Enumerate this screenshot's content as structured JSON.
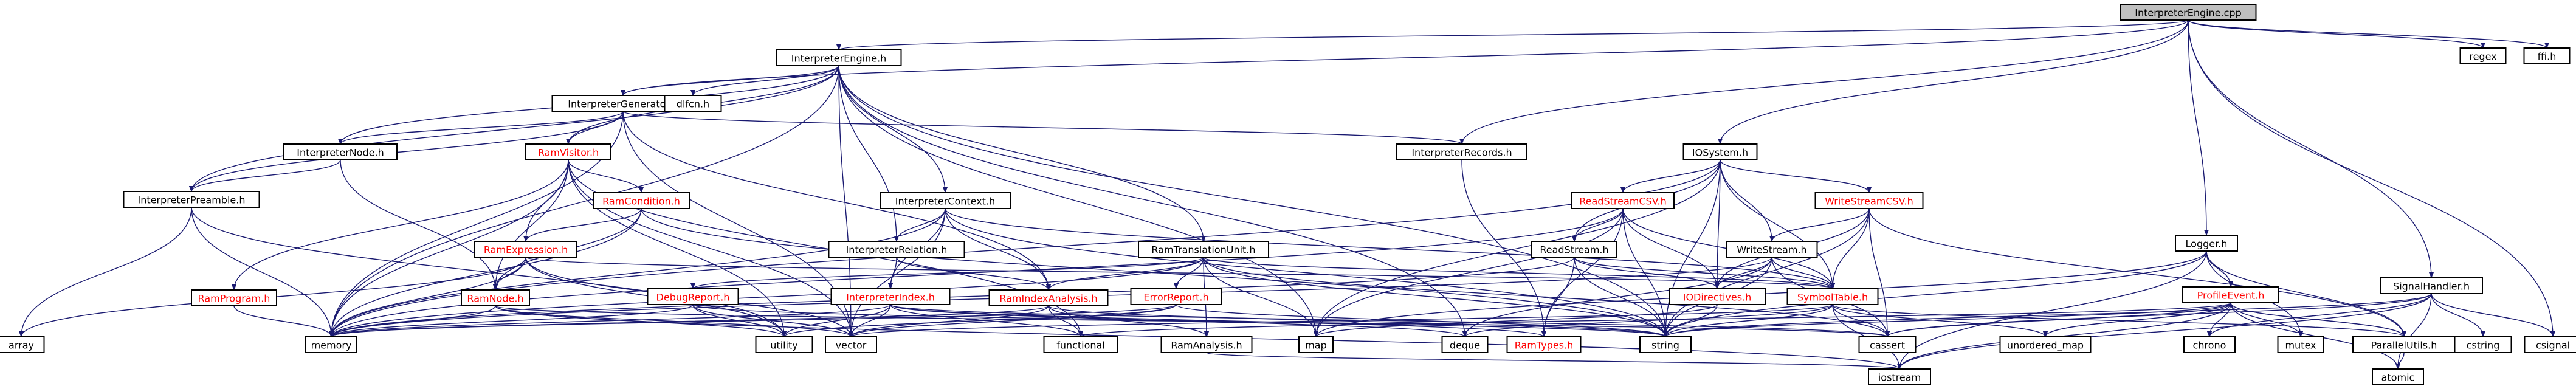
{
  "colors": {
    "edge": "#191970",
    "root_fill": "#bfbfbf",
    "node_fill": "#ffffff",
    "border": "#000000",
    "unresolved_text": "#ff0000"
  },
  "nodes": [
    {
      "id": "n0",
      "label": "InterpreterEngine.cpp",
      "root": true
    },
    {
      "id": "n1",
      "label": "InterpreterEngine.h"
    },
    {
      "id": "n2",
      "label": "regex"
    },
    {
      "id": "n3",
      "label": "ffi.h"
    },
    {
      "id": "n4",
      "label": "InterpreterGenerator.h"
    },
    {
      "id": "n5",
      "label": "dlfcn.h"
    },
    {
      "id": "n6",
      "label": "InterpreterRecords.h"
    },
    {
      "id": "n7",
      "label": "IOSystem.h"
    },
    {
      "id": "n8",
      "label": "Logger.h"
    },
    {
      "id": "n9",
      "label": "SignalHandler.h"
    },
    {
      "id": "n10",
      "label": "csignal"
    },
    {
      "id": "n11",
      "label": "InterpreterNode.h"
    },
    {
      "id": "n12",
      "label": "RamVisitor.h",
      "red": true
    },
    {
      "id": "n13",
      "label": "InterpreterPreamble.h"
    },
    {
      "id": "n14",
      "label": "RamCondition.h",
      "red": true
    },
    {
      "id": "n15",
      "label": "InterpreterContext.h"
    },
    {
      "id": "n16",
      "label": "ReadStreamCSV.h",
      "red": true
    },
    {
      "id": "n17",
      "label": "WriteStreamCSV.h",
      "red": true
    },
    {
      "id": "n18",
      "label": "RamExpression.h",
      "red": true
    },
    {
      "id": "n19",
      "label": "InterpreterRelation.h"
    },
    {
      "id": "n20",
      "label": "RamTranslationUnit.h"
    },
    {
      "id": "n21",
      "label": "ReadStream.h"
    },
    {
      "id": "n22",
      "label": "WriteStream.h"
    },
    {
      "id": "n23",
      "label": "ProfileEvent.h",
      "red": true
    },
    {
      "id": "n24",
      "label": "RamProgram.h",
      "red": true
    },
    {
      "id": "n25",
      "label": "RamNode.h",
      "red": true
    },
    {
      "id": "n26",
      "label": "DebugReport.h",
      "red": true
    },
    {
      "id": "n27",
      "label": "InterpreterIndex.h",
      "red": true
    },
    {
      "id": "n28",
      "label": "RamIndexAnalysis.h",
      "red": true
    },
    {
      "id": "n29",
      "label": "ErrorReport.h",
      "red": true
    },
    {
      "id": "n30",
      "label": "IODirectives.h",
      "red": true
    },
    {
      "id": "n31",
      "label": "SymbolTable.h",
      "red": true
    },
    {
      "id": "n32",
      "label": "array"
    },
    {
      "id": "n33",
      "label": "memory"
    },
    {
      "id": "n34",
      "label": "utility"
    },
    {
      "id": "n35",
      "label": "vector"
    },
    {
      "id": "n36",
      "label": "functional"
    },
    {
      "id": "n37",
      "label": "map"
    },
    {
      "id": "n38",
      "label": "RamAnalysis.h"
    },
    {
      "id": "n39",
      "label": "deque"
    },
    {
      "id": "n40",
      "label": "RamTypes.h",
      "red": true
    },
    {
      "id": "n41",
      "label": "string"
    },
    {
      "id": "n42",
      "label": "cassert"
    },
    {
      "id": "n43",
      "label": "unordered_map"
    },
    {
      "id": "n44",
      "label": "chrono"
    },
    {
      "id": "n45",
      "label": "mutex"
    },
    {
      "id": "n46",
      "label": "ParallelUtils.h"
    },
    {
      "id": "n47",
      "label": "cstring"
    },
    {
      "id": "n48",
      "label": "iostream"
    },
    {
      "id": "n49",
      "label": "atomic"
    }
  ],
  "edges": [
    [
      "n0",
      "n1"
    ],
    [
      "n0",
      "n2"
    ],
    [
      "n0",
      "n3"
    ],
    [
      "n0",
      "n4"
    ],
    [
      "n0",
      "n6"
    ],
    [
      "n0",
      "n7"
    ],
    [
      "n0",
      "n8"
    ],
    [
      "n0",
      "n9"
    ],
    [
      "n0",
      "n10"
    ],
    [
      "n1",
      "n4"
    ],
    [
      "n1",
      "n5"
    ],
    [
      "n1",
      "n11"
    ],
    [
      "n1",
      "n12"
    ],
    [
      "n1",
      "n13"
    ],
    [
      "n1",
      "n15"
    ],
    [
      "n1",
      "n19"
    ],
    [
      "n1",
      "n20"
    ],
    [
      "n1",
      "n33"
    ],
    [
      "n1",
      "n37"
    ],
    [
      "n1",
      "n39"
    ],
    [
      "n1",
      "n35"
    ],
    [
      "n1",
      "n41"
    ],
    [
      "n4",
      "n11"
    ],
    [
      "n4",
      "n12"
    ],
    [
      "n4",
      "n13"
    ],
    [
      "n4",
      "n6"
    ],
    [
      "n4",
      "n28"
    ],
    [
      "n4",
      "n33"
    ],
    [
      "n4",
      "n35"
    ],
    [
      "n11",
      "n13"
    ],
    [
      "n11",
      "n25"
    ],
    [
      "n12",
      "n14"
    ],
    [
      "n12",
      "n18"
    ],
    [
      "n12",
      "n24"
    ],
    [
      "n12",
      "n25"
    ],
    [
      "n12",
      "n33"
    ],
    [
      "n12",
      "n34"
    ],
    [
      "n12",
      "n35"
    ],
    [
      "n12",
      "n36"
    ],
    [
      "n13",
      "n32"
    ],
    [
      "n13",
      "n33"
    ],
    [
      "n13",
      "n34"
    ],
    [
      "n14",
      "n18"
    ],
    [
      "n14",
      "n25"
    ],
    [
      "n14",
      "n33"
    ],
    [
      "n14",
      "n41"
    ],
    [
      "n15",
      "n19"
    ],
    [
      "n15",
      "n27"
    ],
    [
      "n15",
      "n28"
    ],
    [
      "n15",
      "n31"
    ],
    [
      "n15",
      "n33"
    ],
    [
      "n15",
      "n35"
    ],
    [
      "n15",
      "n41"
    ],
    [
      "n6",
      "n40"
    ],
    [
      "n7",
      "n16"
    ],
    [
      "n7",
      "n17"
    ],
    [
      "n7",
      "n21"
    ],
    [
      "n7",
      "n22"
    ],
    [
      "n7",
      "n30"
    ],
    [
      "n7",
      "n31"
    ],
    [
      "n7",
      "n33"
    ],
    [
      "n7",
      "n37"
    ],
    [
      "n7",
      "n41"
    ],
    [
      "n16",
      "n21"
    ],
    [
      "n16",
      "n30"
    ],
    [
      "n16",
      "n31"
    ],
    [
      "n16",
      "n40"
    ],
    [
      "n16",
      "n37"
    ],
    [
      "n16",
      "n41"
    ],
    [
      "n16",
      "n33"
    ],
    [
      "n17",
      "n22"
    ],
    [
      "n17",
      "n30"
    ],
    [
      "n17",
      "n31"
    ],
    [
      "n17",
      "n41"
    ],
    [
      "n17",
      "n42"
    ],
    [
      "n17",
      "n46"
    ],
    [
      "n18",
      "n25"
    ],
    [
      "n18",
      "n31"
    ],
    [
      "n18",
      "n32"
    ],
    [
      "n18",
      "n33"
    ],
    [
      "n18",
      "n35"
    ],
    [
      "n18",
      "n34"
    ],
    [
      "n19",
      "n27"
    ],
    [
      "n19",
      "n28"
    ],
    [
      "n20",
      "n26"
    ],
    [
      "n20",
      "n29"
    ],
    [
      "n20",
      "n28"
    ],
    [
      "n20",
      "n38"
    ],
    [
      "n20",
      "n31"
    ],
    [
      "n20",
      "n37"
    ],
    [
      "n20",
      "n33"
    ],
    [
      "n20",
      "n41"
    ],
    [
      "n20",
      "n42"
    ],
    [
      "n21",
      "n30"
    ],
    [
      "n21",
      "n31"
    ],
    [
      "n21",
      "n40"
    ],
    [
      "n21",
      "n41"
    ],
    [
      "n21",
      "n33"
    ],
    [
      "n22",
      "n30"
    ],
    [
      "n22",
      "n31"
    ],
    [
      "n22",
      "n41"
    ],
    [
      "n22",
      "n33"
    ],
    [
      "n22",
      "n42"
    ],
    [
      "n22",
      "n39"
    ],
    [
      "n8",
      "n23"
    ],
    [
      "n8",
      "n46"
    ],
    [
      "n8",
      "n48"
    ],
    [
      "n8",
      "n41"
    ],
    [
      "n8",
      "n37"
    ],
    [
      "n8",
      "n45"
    ],
    [
      "n9",
      "n10"
    ],
    [
      "n9",
      "n47"
    ],
    [
      "n9",
      "n48"
    ],
    [
      "n9",
      "n49"
    ],
    [
      "n9",
      "n42"
    ],
    [
      "n9",
      "n41"
    ],
    [
      "n9",
      "n44"
    ],
    [
      "n23",
      "n44"
    ],
    [
      "n23",
      "n45"
    ],
    [
      "n23",
      "n43"
    ],
    [
      "n23",
      "n42"
    ],
    [
      "n23",
      "n41"
    ],
    [
      "n23",
      "n48"
    ],
    [
      "n23",
      "n46"
    ],
    [
      "n23",
      "n49"
    ],
    [
      "n23",
      "n36"
    ],
    [
      "n24",
      "n33"
    ],
    [
      "n25",
      "n33"
    ],
    [
      "n25",
      "n34"
    ],
    [
      "n25",
      "n35"
    ],
    [
      "n25",
      "n48"
    ],
    [
      "n25",
      "n42"
    ],
    [
      "n26",
      "n33"
    ],
    [
      "n26",
      "n34"
    ],
    [
      "n26",
      "n35"
    ],
    [
      "n26",
      "n41"
    ],
    [
      "n27",
      "n33"
    ],
    [
      "n27",
      "n34"
    ],
    [
      "n27",
      "n35"
    ],
    [
      "n27",
      "n39"
    ],
    [
      "n27",
      "n40"
    ],
    [
      "n27",
      "n42"
    ],
    [
      "n27",
      "n36"
    ],
    [
      "n28",
      "n33"
    ],
    [
      "n28",
      "n35"
    ],
    [
      "n28",
      "n36"
    ],
    [
      "n28",
      "n41"
    ],
    [
      "n28",
      "n38"
    ],
    [
      "n29",
      "n33"
    ],
    [
      "n29",
      "n34"
    ],
    [
      "n29",
      "n35"
    ],
    [
      "n29",
      "n41"
    ],
    [
      "n30",
      "n37"
    ],
    [
      "n30",
      "n41"
    ],
    [
      "n31",
      "n41"
    ],
    [
      "n31",
      "n42"
    ],
    [
      "n31",
      "n43"
    ],
    [
      "n31",
      "n48"
    ],
    [
      "n31",
      "n46"
    ],
    [
      "n31",
      "n39"
    ],
    [
      "n31",
      "n35"
    ],
    [
      "n38",
      "n48"
    ],
    [
      "n46",
      "n49"
    ]
  ]
}
